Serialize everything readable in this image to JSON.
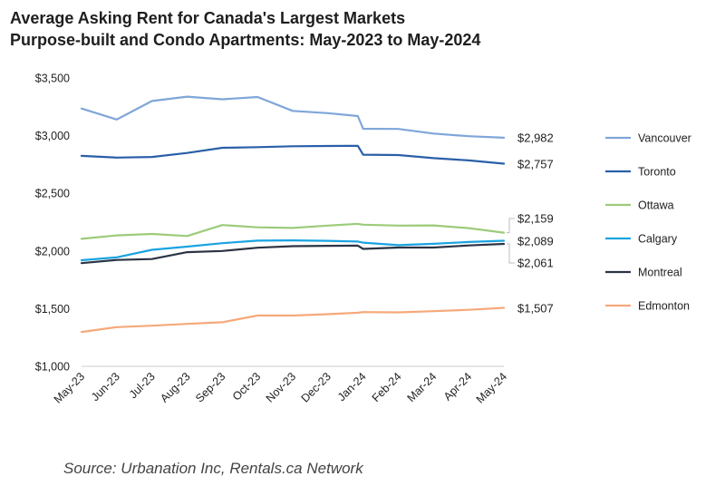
{
  "chart_data": {
    "type": "line",
    "title": "Average Asking Rent for Canada's Largest Markets",
    "subtitle": "Purpose-built and Condo Apartments: May-2023 to May-2024",
    "categories": [
      "May-23",
      "Jun-23",
      "Jul-23",
      "Aug-23",
      "Sep-23",
      "Oct-23",
      "Nov-23",
      "Dec-23",
      "Jan-24",
      "Feb-24",
      "Mar-24",
      "Apr-24",
      "May-24"
    ],
    "y_ticks": [
      "$1,000",
      "$1,500",
      "$2,000",
      "$2,500",
      "$3,000",
      "$3,500"
    ],
    "ylim": [
      1000,
      3500
    ],
    "grid": false,
    "legend_position": "right",
    "series": [
      {
        "name": "Vancouver",
        "color": "#7fa6d9",
        "end_label": "$2,982",
        "points": [
          [
            0,
            3235
          ],
          [
            1,
            3140
          ],
          [
            2,
            3300
          ],
          [
            3,
            3338
          ],
          [
            4,
            3315
          ],
          [
            5,
            3335
          ],
          [
            6,
            3215
          ],
          [
            7,
            3195
          ],
          [
            7.85,
            3170
          ],
          [
            8,
            3060
          ],
          [
            9,
            3058
          ],
          [
            10,
            3018
          ],
          [
            11,
            2995
          ],
          [
            12,
            2982
          ]
        ]
      },
      {
        "name": "Toronto",
        "color": "#2a5fa8",
        "end_label": "$2,757",
        "points": [
          [
            0,
            2825
          ],
          [
            1,
            2810
          ],
          [
            2,
            2815
          ],
          [
            3,
            2850
          ],
          [
            4,
            2895
          ],
          [
            5,
            2900
          ],
          [
            6,
            2908
          ],
          [
            7,
            2910
          ],
          [
            7.85,
            2912
          ],
          [
            8,
            2835
          ],
          [
            9,
            2832
          ],
          [
            10,
            2805
          ],
          [
            11,
            2785
          ],
          [
            12,
            2757
          ]
        ]
      },
      {
        "name": "Ottawa",
        "color": "#9ccb7a",
        "end_label": "$2,159",
        "points": [
          [
            0,
            2105
          ],
          [
            1,
            2135
          ],
          [
            2,
            2148
          ],
          [
            3,
            2130
          ],
          [
            4,
            2225
          ],
          [
            5,
            2205
          ],
          [
            6,
            2200
          ],
          [
            7,
            2220
          ],
          [
            7.85,
            2235
          ],
          [
            8,
            2228
          ],
          [
            9,
            2220
          ],
          [
            10,
            2222
          ],
          [
            11,
            2198
          ],
          [
            12,
            2159
          ]
        ]
      },
      {
        "name": "Calgary",
        "color": "#1aa3e0",
        "end_label": "$2,089",
        "points": [
          [
            0,
            1920
          ],
          [
            1,
            1945
          ],
          [
            2,
            2010
          ],
          [
            3,
            2038
          ],
          [
            4,
            2068
          ],
          [
            5,
            2090
          ],
          [
            6,
            2092
          ],
          [
            7,
            2088
          ],
          [
            7.85,
            2082
          ],
          [
            8,
            2072
          ],
          [
            9,
            2050
          ],
          [
            10,
            2062
          ],
          [
            11,
            2078
          ],
          [
            12,
            2089
          ]
        ]
      },
      {
        "name": "Montreal",
        "color": "#2b3444",
        "end_label": "$2,061",
        "points": [
          [
            0,
            1895
          ],
          [
            1,
            1922
          ],
          [
            2,
            1930
          ],
          [
            3,
            1990
          ],
          [
            4,
            2000
          ],
          [
            5,
            2028
          ],
          [
            6,
            2042
          ],
          [
            7,
            2045
          ],
          [
            7.85,
            2046
          ],
          [
            8,
            2018
          ],
          [
            9,
            2030
          ],
          [
            10,
            2030
          ],
          [
            11,
            2048
          ],
          [
            12,
            2061
          ]
        ]
      },
      {
        "name": "Edmonton",
        "color": "#f5a97a",
        "end_label": "$1,507",
        "points": [
          [
            0,
            1298
          ],
          [
            1,
            1340
          ],
          [
            2,
            1352
          ],
          [
            3,
            1368
          ],
          [
            4,
            1382
          ],
          [
            5,
            1440
          ],
          [
            6,
            1440
          ],
          [
            7,
            1452
          ],
          [
            7.85,
            1465
          ],
          [
            8,
            1470
          ],
          [
            9,
            1468
          ],
          [
            10,
            1478
          ],
          [
            11,
            1490
          ],
          [
            12,
            1507
          ]
        ]
      }
    ],
    "source": "Source: Urbanation Inc, Rentals.ca Network"
  }
}
